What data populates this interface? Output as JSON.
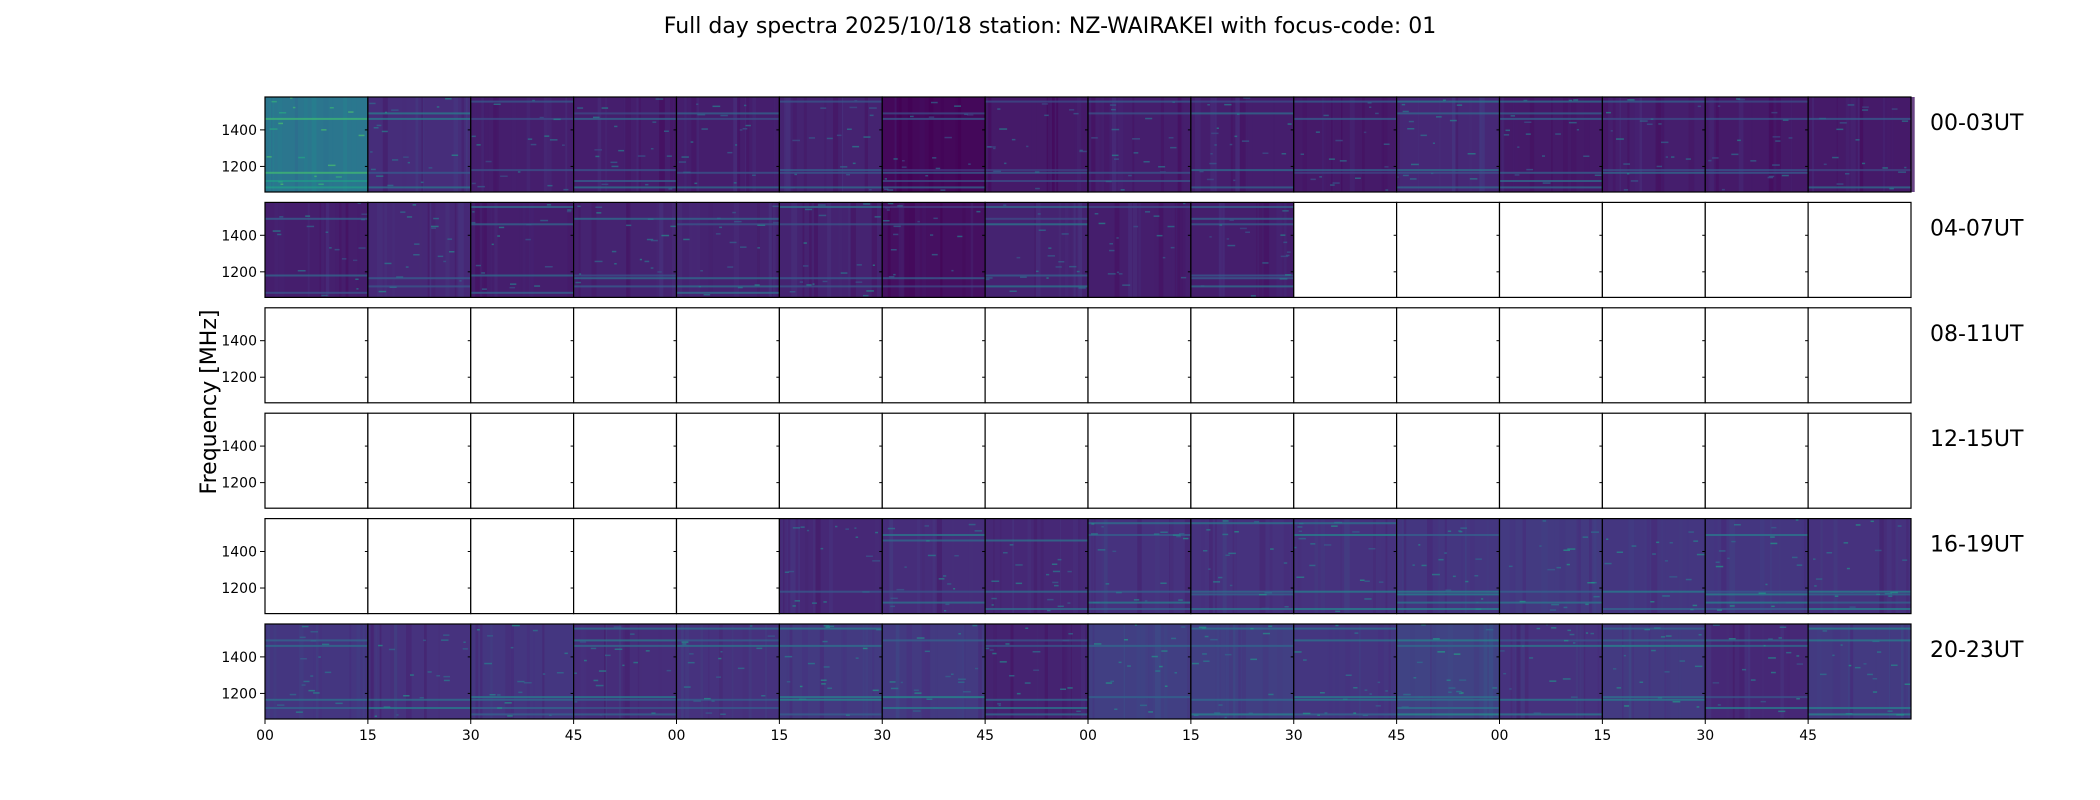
{
  "chart_data": {
    "type": "heatmap",
    "title": "Full day spectra 2025/10/18 station: NZ-WAIRAKEI with focus-code: 01",
    "xlabel": "",
    "ylabel": "Frequency [MHz]",
    "ylim": [
      1060,
      1580
    ],
    "yticks": [
      1200,
      1400
    ],
    "ytick_labels": [
      "1200",
      "1400"
    ],
    "xtick_labels": [
      "00",
      "15",
      "30",
      "45",
      "00",
      "15",
      "30",
      "45",
      "00",
      "15",
      "30",
      "45",
      "00",
      "15",
      "30",
      "45"
    ],
    "segment_minutes": 15,
    "colormap": [
      "#440154",
      "#46327e",
      "#365c8d",
      "#277f8e",
      "#1fa187",
      "#4ac16d"
    ],
    "empty_color": "#ffffff",
    "rows": [
      {
        "label": "00-03UT",
        "panels": [
          {
            "has_data": true,
            "level": 0.55
          },
          {
            "has_data": true,
            "level": 0.18
          },
          {
            "has_data": true,
            "level": 0.12
          },
          {
            "has_data": true,
            "level": 0.12
          },
          {
            "has_data": true,
            "level": 0.12
          },
          {
            "has_data": true,
            "level": 0.14
          },
          {
            "has_data": true,
            "level": 0.03
          },
          {
            "has_data": true,
            "level": 0.1
          },
          {
            "has_data": true,
            "level": 0.12
          },
          {
            "has_data": true,
            "level": 0.12
          },
          {
            "has_data": true,
            "level": 0.1
          },
          {
            "has_data": true,
            "level": 0.16
          },
          {
            "has_data": true,
            "level": 0.1
          },
          {
            "has_data": true,
            "level": 0.12
          },
          {
            "has_data": true,
            "level": 0.1
          },
          {
            "has_data": true,
            "level": 0.1
          }
        ]
      },
      {
        "label": "04-07UT",
        "panels": [
          {
            "has_data": true,
            "level": 0.12
          },
          {
            "has_data": true,
            "level": 0.16
          },
          {
            "has_data": true,
            "level": 0.12
          },
          {
            "has_data": true,
            "level": 0.14
          },
          {
            "has_data": true,
            "level": 0.14
          },
          {
            "has_data": true,
            "level": 0.14
          },
          {
            "has_data": true,
            "level": 0.06
          },
          {
            "has_data": true,
            "level": 0.14
          },
          {
            "has_data": true,
            "level": 0.12
          },
          {
            "has_data": true,
            "level": 0.12
          },
          {
            "has_data": false,
            "level": 0
          },
          {
            "has_data": false,
            "level": 0
          },
          {
            "has_data": false,
            "level": 0
          },
          {
            "has_data": false,
            "level": 0
          },
          {
            "has_data": false,
            "level": 0
          },
          {
            "has_data": false,
            "level": 0
          }
        ]
      },
      {
        "label": "08-11UT",
        "panels": [
          {
            "has_data": false,
            "level": 0
          },
          {
            "has_data": false,
            "level": 0
          },
          {
            "has_data": false,
            "level": 0
          },
          {
            "has_data": false,
            "level": 0
          },
          {
            "has_data": false,
            "level": 0
          },
          {
            "has_data": false,
            "level": 0
          },
          {
            "has_data": false,
            "level": 0
          },
          {
            "has_data": false,
            "level": 0
          },
          {
            "has_data": false,
            "level": 0
          },
          {
            "has_data": false,
            "level": 0
          },
          {
            "has_data": false,
            "level": 0
          },
          {
            "has_data": false,
            "level": 0
          },
          {
            "has_data": false,
            "level": 0
          },
          {
            "has_data": false,
            "level": 0
          },
          {
            "has_data": false,
            "level": 0
          },
          {
            "has_data": false,
            "level": 0
          }
        ]
      },
      {
        "label": "12-15UT",
        "panels": [
          {
            "has_data": false,
            "level": 0
          },
          {
            "has_data": false,
            "level": 0
          },
          {
            "has_data": false,
            "level": 0
          },
          {
            "has_data": false,
            "level": 0
          },
          {
            "has_data": false,
            "level": 0
          },
          {
            "has_data": false,
            "level": 0
          },
          {
            "has_data": false,
            "level": 0
          },
          {
            "has_data": false,
            "level": 0
          },
          {
            "has_data": false,
            "level": 0
          },
          {
            "has_data": false,
            "level": 0
          },
          {
            "has_data": false,
            "level": 0
          },
          {
            "has_data": false,
            "level": 0
          },
          {
            "has_data": false,
            "level": 0
          },
          {
            "has_data": false,
            "level": 0
          },
          {
            "has_data": false,
            "level": 0
          },
          {
            "has_data": false,
            "level": 0
          }
        ]
      },
      {
        "label": "16-19UT",
        "panels": [
          {
            "has_data": false,
            "level": 0
          },
          {
            "has_data": false,
            "level": 0
          },
          {
            "has_data": false,
            "level": 0
          },
          {
            "has_data": false,
            "level": 0
          },
          {
            "has_data": false,
            "level": 0
          },
          {
            "has_data": true,
            "level": 0.16
          },
          {
            "has_data": true,
            "level": 0.18
          },
          {
            "has_data": true,
            "level": 0.16
          },
          {
            "has_data": true,
            "level": 0.2
          },
          {
            "has_data": true,
            "level": 0.2
          },
          {
            "has_data": true,
            "level": 0.2
          },
          {
            "has_data": true,
            "level": 0.22
          },
          {
            "has_data": true,
            "level": 0.24
          },
          {
            "has_data": true,
            "level": 0.22
          },
          {
            "has_data": true,
            "level": 0.22
          },
          {
            "has_data": true,
            "level": 0.2
          }
        ]
      },
      {
        "label": "20-23UT",
        "panels": [
          {
            "has_data": true,
            "level": 0.22
          },
          {
            "has_data": true,
            "level": 0.2
          },
          {
            "has_data": true,
            "level": 0.22
          },
          {
            "has_data": true,
            "level": 0.18
          },
          {
            "has_data": true,
            "level": 0.2
          },
          {
            "has_data": true,
            "level": 0.24
          },
          {
            "has_data": true,
            "level": 0.24
          },
          {
            "has_data": true,
            "level": 0.14
          },
          {
            "has_data": true,
            "level": 0.26
          },
          {
            "has_data": true,
            "level": 0.26
          },
          {
            "has_data": true,
            "level": 0.22
          },
          {
            "has_data": true,
            "level": 0.28
          },
          {
            "has_data": true,
            "level": 0.2
          },
          {
            "has_data": true,
            "level": 0.24
          },
          {
            "has_data": true,
            "level": 0.16
          },
          {
            "has_data": true,
            "level": 0.24
          }
        ]
      }
    ]
  }
}
